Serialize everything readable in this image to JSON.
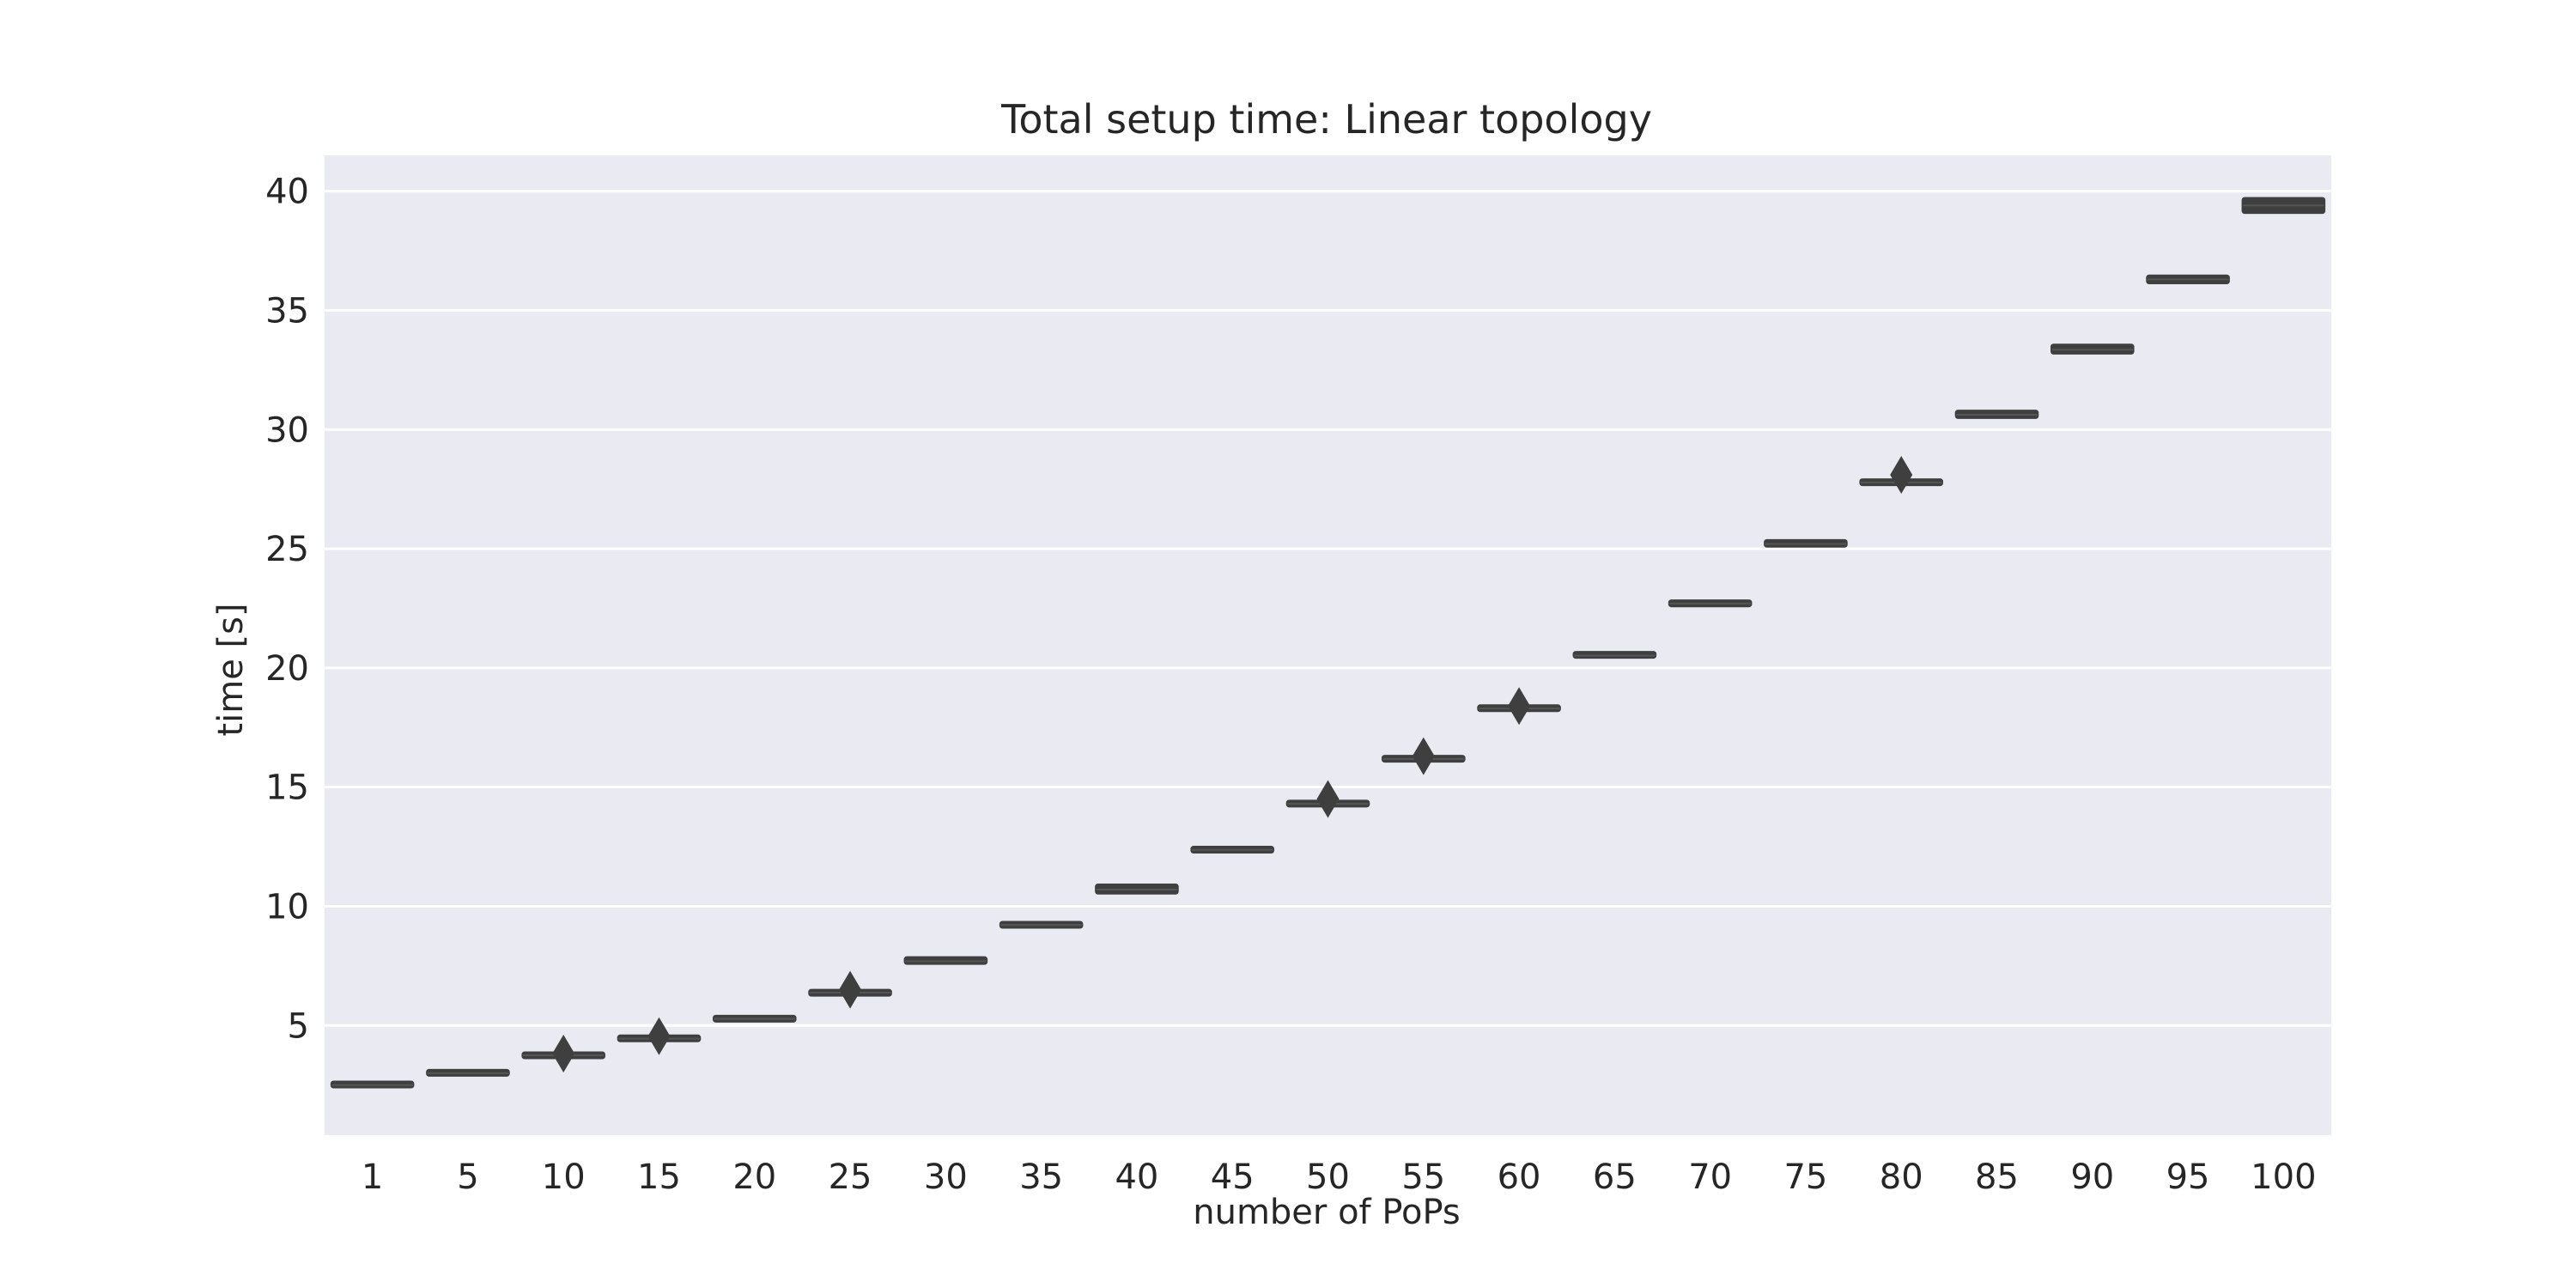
{
  "chart_data": {
    "type": "box",
    "title": "Total setup time: Linear topology",
    "xlabel": "number of PoPs",
    "ylabel": "time [s]",
    "categories": [
      "1",
      "5",
      "10",
      "15",
      "20",
      "25",
      "30",
      "35",
      "40",
      "45",
      "50",
      "55",
      "60",
      "65",
      "70",
      "75",
      "80",
      "85",
      "90",
      "95",
      "100"
    ],
    "ylim": [
      0.4,
      41.5
    ],
    "yticks": [
      "5",
      "10",
      "15",
      "20",
      "25",
      "30",
      "35",
      "40"
    ],
    "grid": true,
    "legend": "none",
    "colors": {
      "background": "#eaeaf2",
      "grid": "#ffffff",
      "box": "#3f3f3f",
      "text": "#262626"
    },
    "boxes": [
      {
        "category": "1",
        "min": 2.45,
        "q1": 2.45,
        "median": 2.5,
        "q3": 2.6,
        "max": 2.6,
        "outliers": []
      },
      {
        "category": "5",
        "min": 2.95,
        "q1": 2.95,
        "median": 3.0,
        "q3": 3.08,
        "max": 3.08,
        "outliers": []
      },
      {
        "category": "10",
        "min": 3.68,
        "q1": 3.68,
        "median": 3.75,
        "q3": 3.82,
        "max": 3.82,
        "outliers": [
          3.82
        ]
      },
      {
        "category": "15",
        "min": 4.4,
        "q1": 4.4,
        "median": 4.45,
        "q3": 4.52,
        "max": 4.52,
        "outliers": [
          4.55
        ]
      },
      {
        "category": "20",
        "min": 5.22,
        "q1": 5.22,
        "median": 5.28,
        "q3": 5.35,
        "max": 5.35,
        "outliers": []
      },
      {
        "category": "25",
        "min": 6.3,
        "q1": 6.3,
        "median": 6.38,
        "q3": 6.45,
        "max": 6.45,
        "outliers": [
          6.5
        ]
      },
      {
        "category": "30",
        "min": 7.6,
        "q1": 7.6,
        "median": 7.7,
        "q3": 7.85,
        "max": 7.85,
        "outliers": []
      },
      {
        "category": "35",
        "min": 9.15,
        "q1": 9.15,
        "median": 9.22,
        "q3": 9.3,
        "max": 9.3,
        "outliers": []
      },
      {
        "category": "40",
        "min": 10.55,
        "q1": 10.55,
        "median": 10.7,
        "q3": 10.9,
        "max": 10.9,
        "outliers": []
      },
      {
        "category": "45",
        "min": 12.3,
        "q1": 12.3,
        "median": 12.37,
        "q3": 12.45,
        "max": 12.45,
        "outliers": []
      },
      {
        "category": "50",
        "min": 14.22,
        "q1": 14.22,
        "median": 14.3,
        "q3": 14.4,
        "max": 14.4,
        "outliers": [
          14.5
        ]
      },
      {
        "category": "55",
        "min": 16.1,
        "q1": 16.1,
        "median": 16.18,
        "q3": 16.28,
        "max": 16.28,
        "outliers": [
          16.3
        ]
      },
      {
        "category": "60",
        "min": 18.22,
        "q1": 18.22,
        "median": 18.3,
        "q3": 18.4,
        "max": 18.4,
        "outliers": [
          18.4
        ]
      },
      {
        "category": "65",
        "min": 20.45,
        "q1": 20.45,
        "median": 20.52,
        "q3": 20.65,
        "max": 20.65,
        "outliers": []
      },
      {
        "category": "70",
        "min": 22.6,
        "q1": 22.6,
        "median": 22.7,
        "q3": 22.82,
        "max": 22.82,
        "outliers": []
      },
      {
        "category": "75",
        "min": 25.1,
        "q1": 25.1,
        "median": 25.2,
        "q3": 25.35,
        "max": 25.35,
        "outliers": []
      },
      {
        "category": "80",
        "min": 27.7,
        "q1": 27.7,
        "median": 27.78,
        "q3": 27.88,
        "max": 27.88,
        "outliers": [
          28.1
        ]
      },
      {
        "category": "85",
        "min": 30.5,
        "q1": 30.5,
        "median": 30.62,
        "q3": 30.78,
        "max": 30.78,
        "outliers": []
      },
      {
        "category": "90",
        "min": 33.2,
        "q1": 33.2,
        "median": 33.35,
        "q3": 33.55,
        "max": 33.55,
        "outliers": []
      },
      {
        "category": "95",
        "min": 36.15,
        "q1": 36.15,
        "median": 36.3,
        "q3": 36.45,
        "max": 36.45,
        "outliers": []
      },
      {
        "category": "100",
        "min": 39.1,
        "q1": 39.1,
        "median": 39.4,
        "q3": 39.7,
        "max": 39.7,
        "outliers": []
      }
    ]
  }
}
